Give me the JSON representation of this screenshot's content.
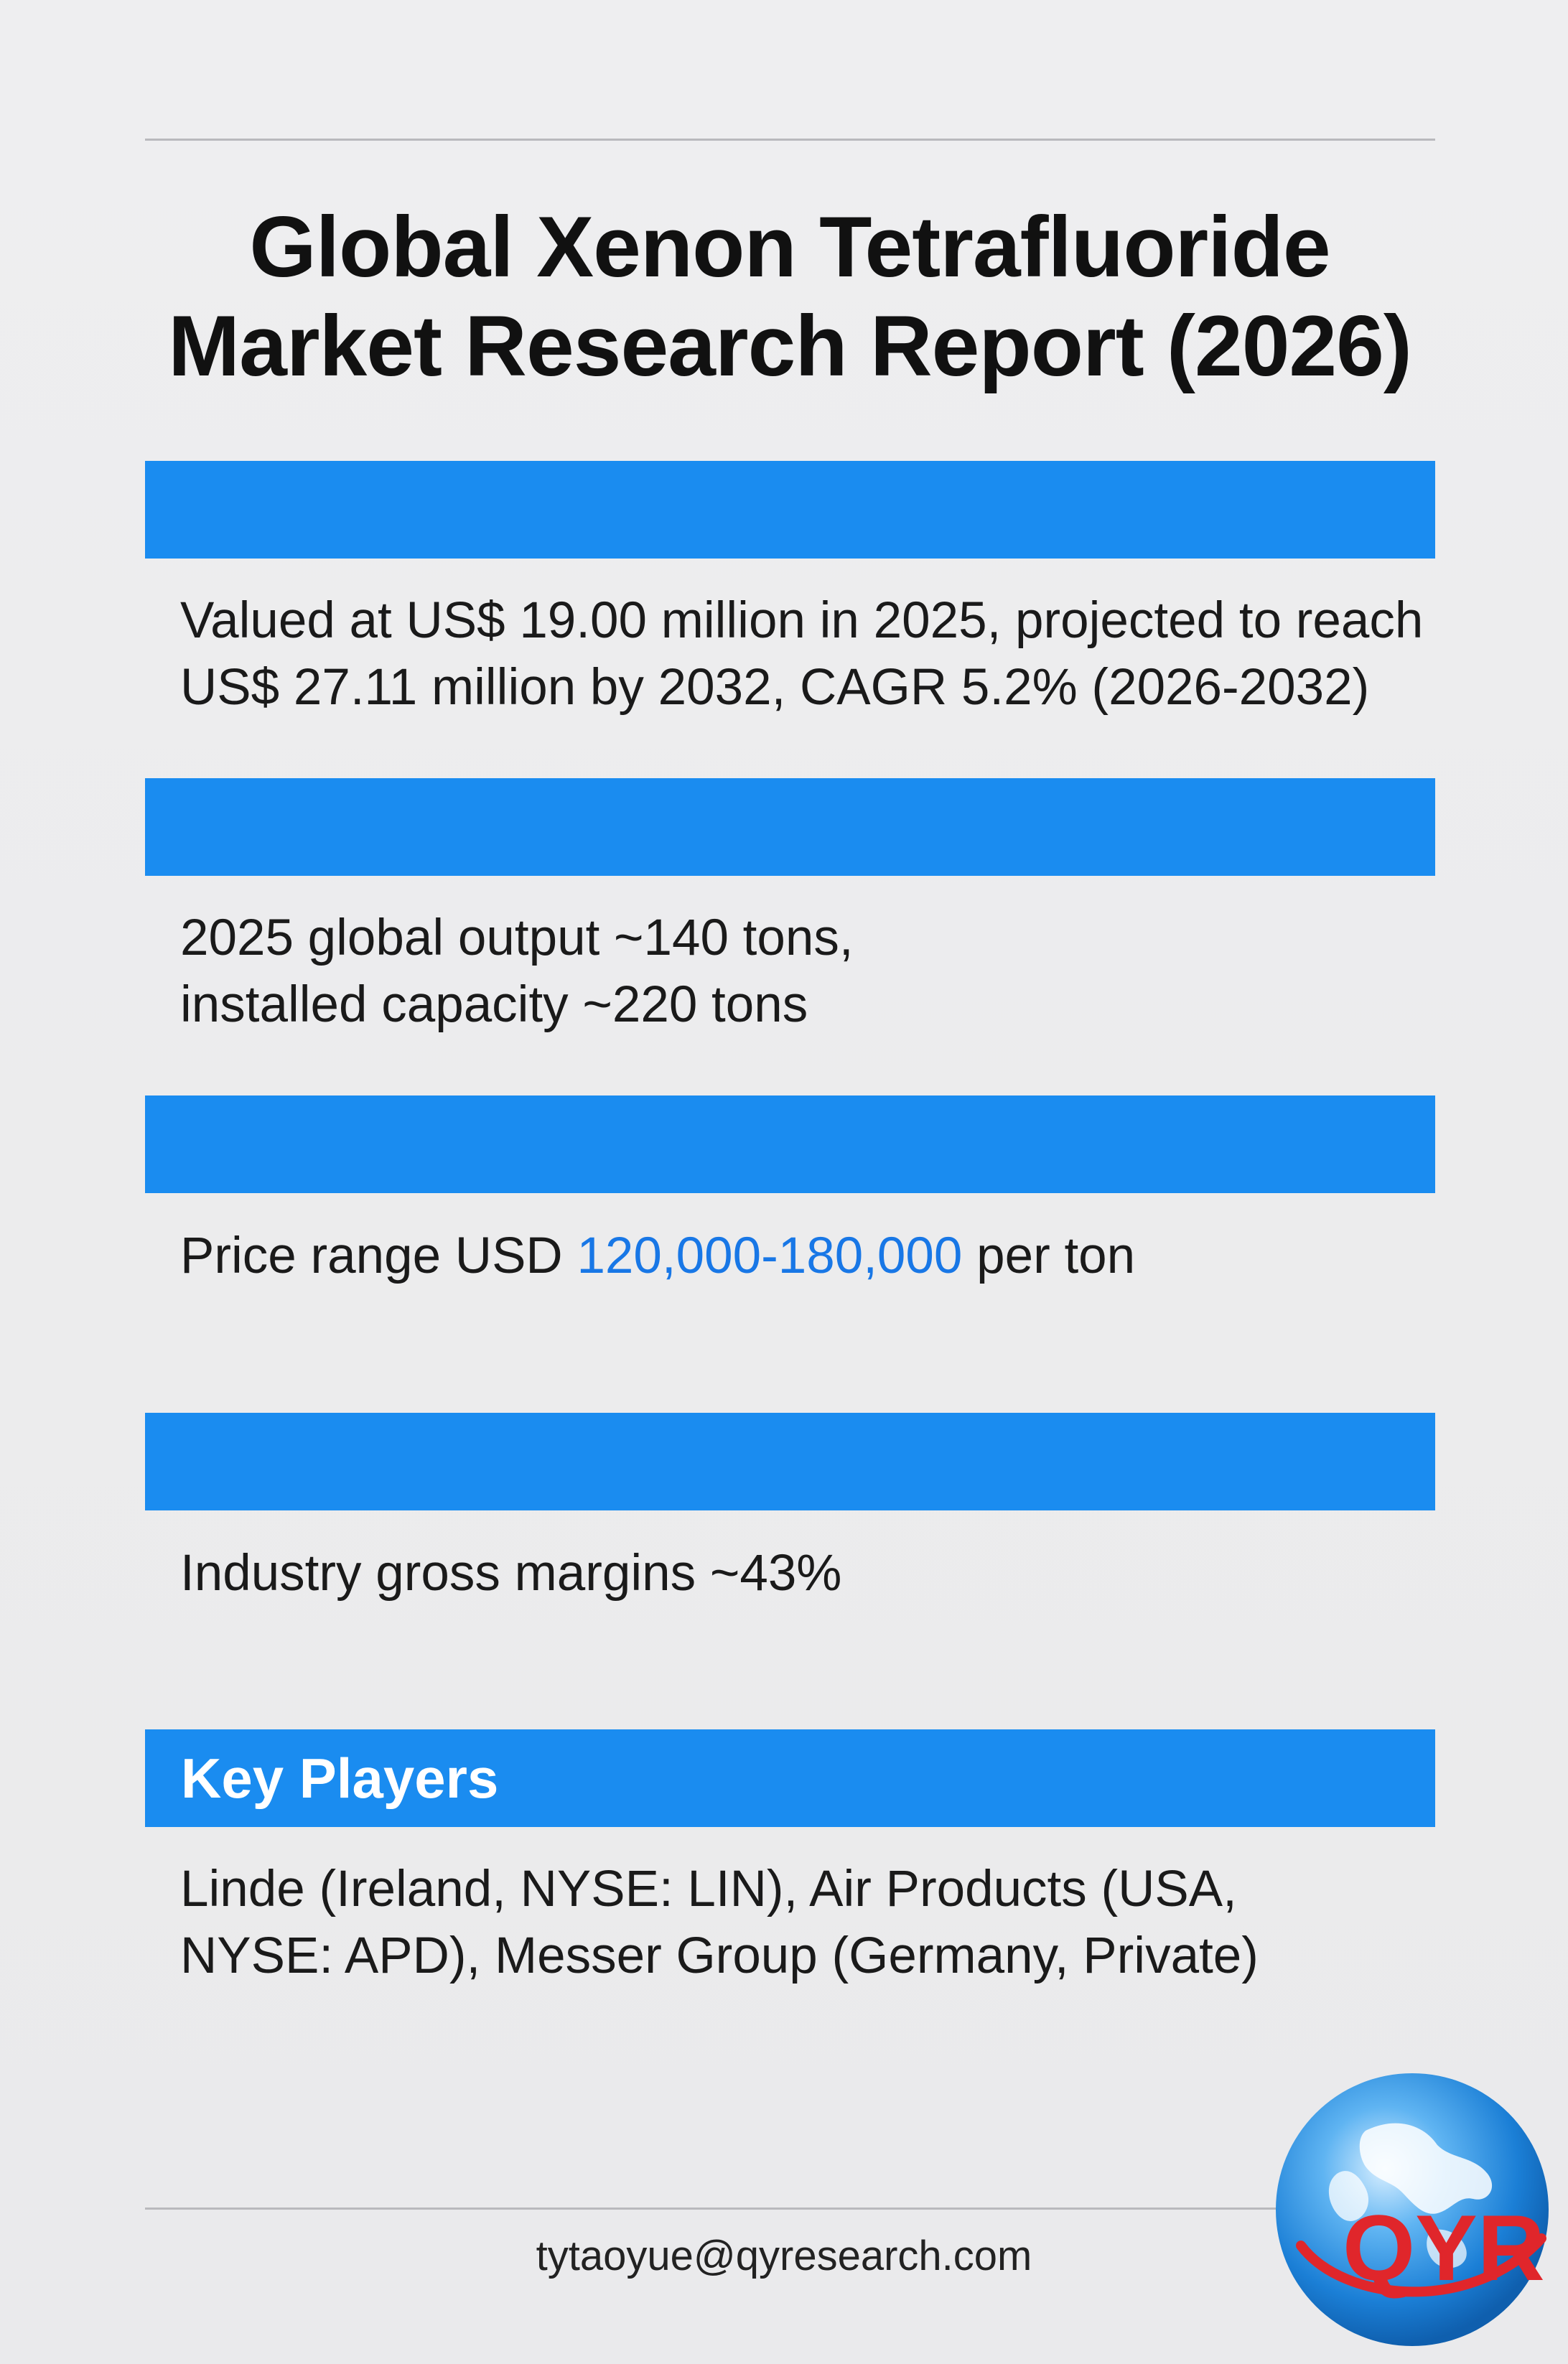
{
  "title": {
    "line1": "Global Xenon Tetrafluoride",
    "line2": "Market Research Report (2026)"
  },
  "sections": [
    {
      "heading": "",
      "lines": [
        "Valued at US$ 19.00 million in 2025, projected to reach",
        "US$ 27.11 million by 2032, CAGR 5.2% (2026-2032)"
      ]
    },
    {
      "heading": "",
      "lines": [
        "2025 global output ~140 tons,",
        "installed capacity ~220 tons"
      ]
    },
    {
      "heading": "",
      "price_prefix": "Price range USD ",
      "price_value": "120,000-180,000",
      "price_suffix": " per ton"
    },
    {
      "heading": "",
      "lines": [
        "Industry gross margins ~43%"
      ]
    },
    {
      "heading": "Key Players",
      "lines": [
        "Linde (Ireland, NYSE: LIN), Air Products (USA,",
        "NYSE: APD), Messer Group (Germany, Private)"
      ]
    }
  ],
  "footer": {
    "email": "tytaoyue@qyresearch.com"
  },
  "logo": {
    "text": "QYR",
    "icon": "globe-icon"
  },
  "colors": {
    "bar": "#1a8cf0",
    "highlight": "#1877e6",
    "logo_red": "#e0262b"
  }
}
